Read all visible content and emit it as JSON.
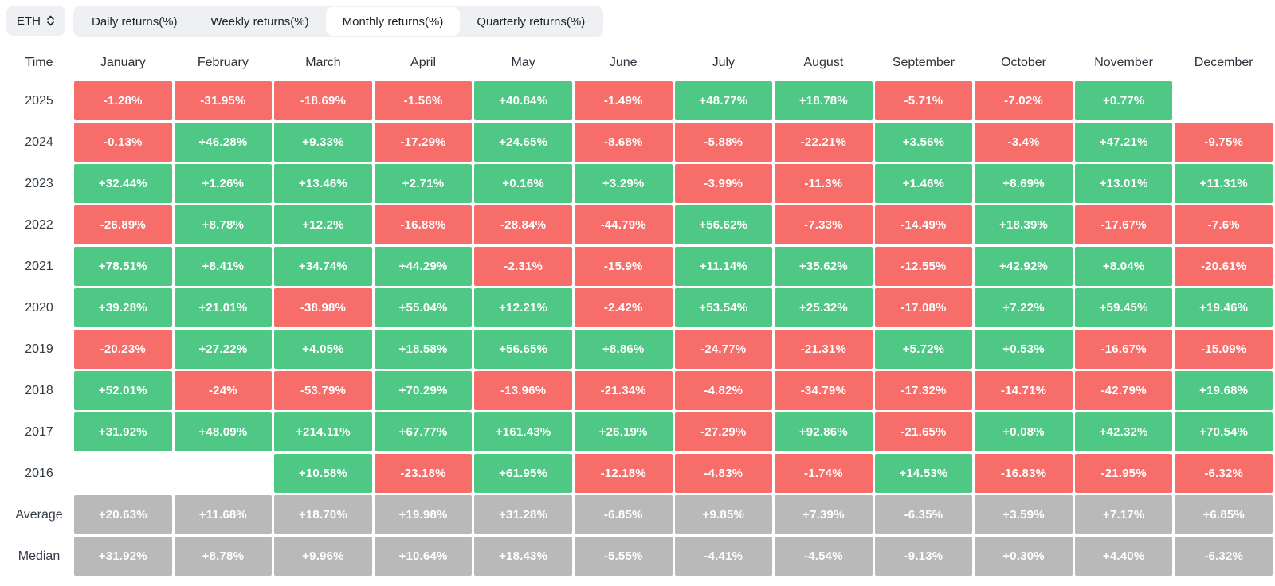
{
  "header": {
    "symbol": "ETH"
  },
  "tabs": {
    "active_index": 2,
    "items": [
      {
        "id": "daily-returns",
        "label": "Daily returns(%)"
      },
      {
        "id": "weekly-returns",
        "label": "Weekly returns(%)"
      },
      {
        "id": "monthly-returns",
        "label": "Monthly returns(%)"
      },
      {
        "id": "quarterly-returns",
        "label": "Quarterly returns(%)"
      }
    ]
  },
  "colors": {
    "positive": "#4fc886",
    "negative": "#f66d6a",
    "summary": "#b9b9b9",
    "cell_text": "#ffffff",
    "tab_bg": "#eef0f3",
    "active_tab_bg": "#ffffff",
    "text_dark": "#1e2329",
    "header_text": "#2b3139",
    "label_text": "#333b44"
  },
  "table": {
    "columns": [
      "Time",
      "January",
      "February",
      "March",
      "April",
      "May",
      "June",
      "July",
      "August",
      "September",
      "October",
      "November",
      "December"
    ],
    "rows": [
      {
        "label": "2025",
        "type": "year",
        "values": [
          "-1.28%",
          "-31.95%",
          "-18.69%",
          "-1.56%",
          "+40.84%",
          "-1.49%",
          "+48.77%",
          "+18.78%",
          "-5.71%",
          "-7.02%",
          "+0.77%",
          ""
        ]
      },
      {
        "label": "2024",
        "type": "year",
        "values": [
          "-0.13%",
          "+46.28%",
          "+9.33%",
          "-17.29%",
          "+24.65%",
          "-8.68%",
          "-5.88%",
          "-22.21%",
          "+3.56%",
          "-3.4%",
          "+47.21%",
          "-9.75%"
        ]
      },
      {
        "label": "2023",
        "type": "year",
        "values": [
          "+32.44%",
          "+1.26%",
          "+13.46%",
          "+2.71%",
          "+0.16%",
          "+3.29%",
          "-3.99%",
          "-11.3%",
          "+1.46%",
          "+8.69%",
          "+13.01%",
          "+11.31%"
        ]
      },
      {
        "label": "2022",
        "type": "year",
        "values": [
          "-26.89%",
          "+8.78%",
          "+12.2%",
          "-16.88%",
          "-28.84%",
          "-44.79%",
          "+56.62%",
          "-7.33%",
          "-14.49%",
          "+18.39%",
          "-17.67%",
          "-7.6%"
        ]
      },
      {
        "label": "2021",
        "type": "year",
        "values": [
          "+78.51%",
          "+8.41%",
          "+34.74%",
          "+44.29%",
          "-2.31%",
          "-15.9%",
          "+11.14%",
          "+35.62%",
          "-12.55%",
          "+42.92%",
          "+8.04%",
          "-20.61%"
        ]
      },
      {
        "label": "2020",
        "type": "year",
        "values": [
          "+39.28%",
          "+21.01%",
          "-38.98%",
          "+55.04%",
          "+12.21%",
          "-2.42%",
          "+53.54%",
          "+25.32%",
          "-17.08%",
          "+7.22%",
          "+59.45%",
          "+19.46%"
        ]
      },
      {
        "label": "2019",
        "type": "year",
        "values": [
          "-20.23%",
          "+27.22%",
          "+4.05%",
          "+18.58%",
          "+56.65%",
          "+8.86%",
          "-24.77%",
          "-21.31%",
          "+5.72%",
          "+0.53%",
          "-16.67%",
          "-15.09%"
        ]
      },
      {
        "label": "2018",
        "type": "year",
        "values": [
          "+52.01%",
          "-24%",
          "-53.79%",
          "+70.29%",
          "-13.96%",
          "-21.34%",
          "-4.82%",
          "-34.79%",
          "-17.32%",
          "-14.71%",
          "-42.79%",
          "+19.68%"
        ]
      },
      {
        "label": "2017",
        "type": "year",
        "values": [
          "+31.92%",
          "+48.09%",
          "+214.11%",
          "+67.77%",
          "+161.43%",
          "+26.19%",
          "-27.29%",
          "+92.86%",
          "-21.65%",
          "+0.08%",
          "+42.32%",
          "+70.54%"
        ]
      },
      {
        "label": "2016",
        "type": "year",
        "values": [
          "",
          "",
          "+10.58%",
          "-23.18%",
          "+61.95%",
          "-12.18%",
          "-4.83%",
          "-1.74%",
          "+14.53%",
          "-16.83%",
          "-21.95%",
          "-6.32%"
        ]
      },
      {
        "label": "Average",
        "type": "summary",
        "values": [
          "+20.63%",
          "+11.68%",
          "+18.70%",
          "+19.98%",
          "+31.28%",
          "-6.85%",
          "+9.85%",
          "+7.39%",
          "-6.35%",
          "+3.59%",
          "+7.17%",
          "+6.85%"
        ]
      },
      {
        "label": "Median",
        "type": "summary",
        "values": [
          "+31.92%",
          "+8.78%",
          "+9.96%",
          "+10.64%",
          "+18.43%",
          "-5.55%",
          "-4.41%",
          "-4.54%",
          "-9.13%",
          "+0.30%",
          "+4.40%",
          "-6.32%"
        ]
      }
    ]
  }
}
